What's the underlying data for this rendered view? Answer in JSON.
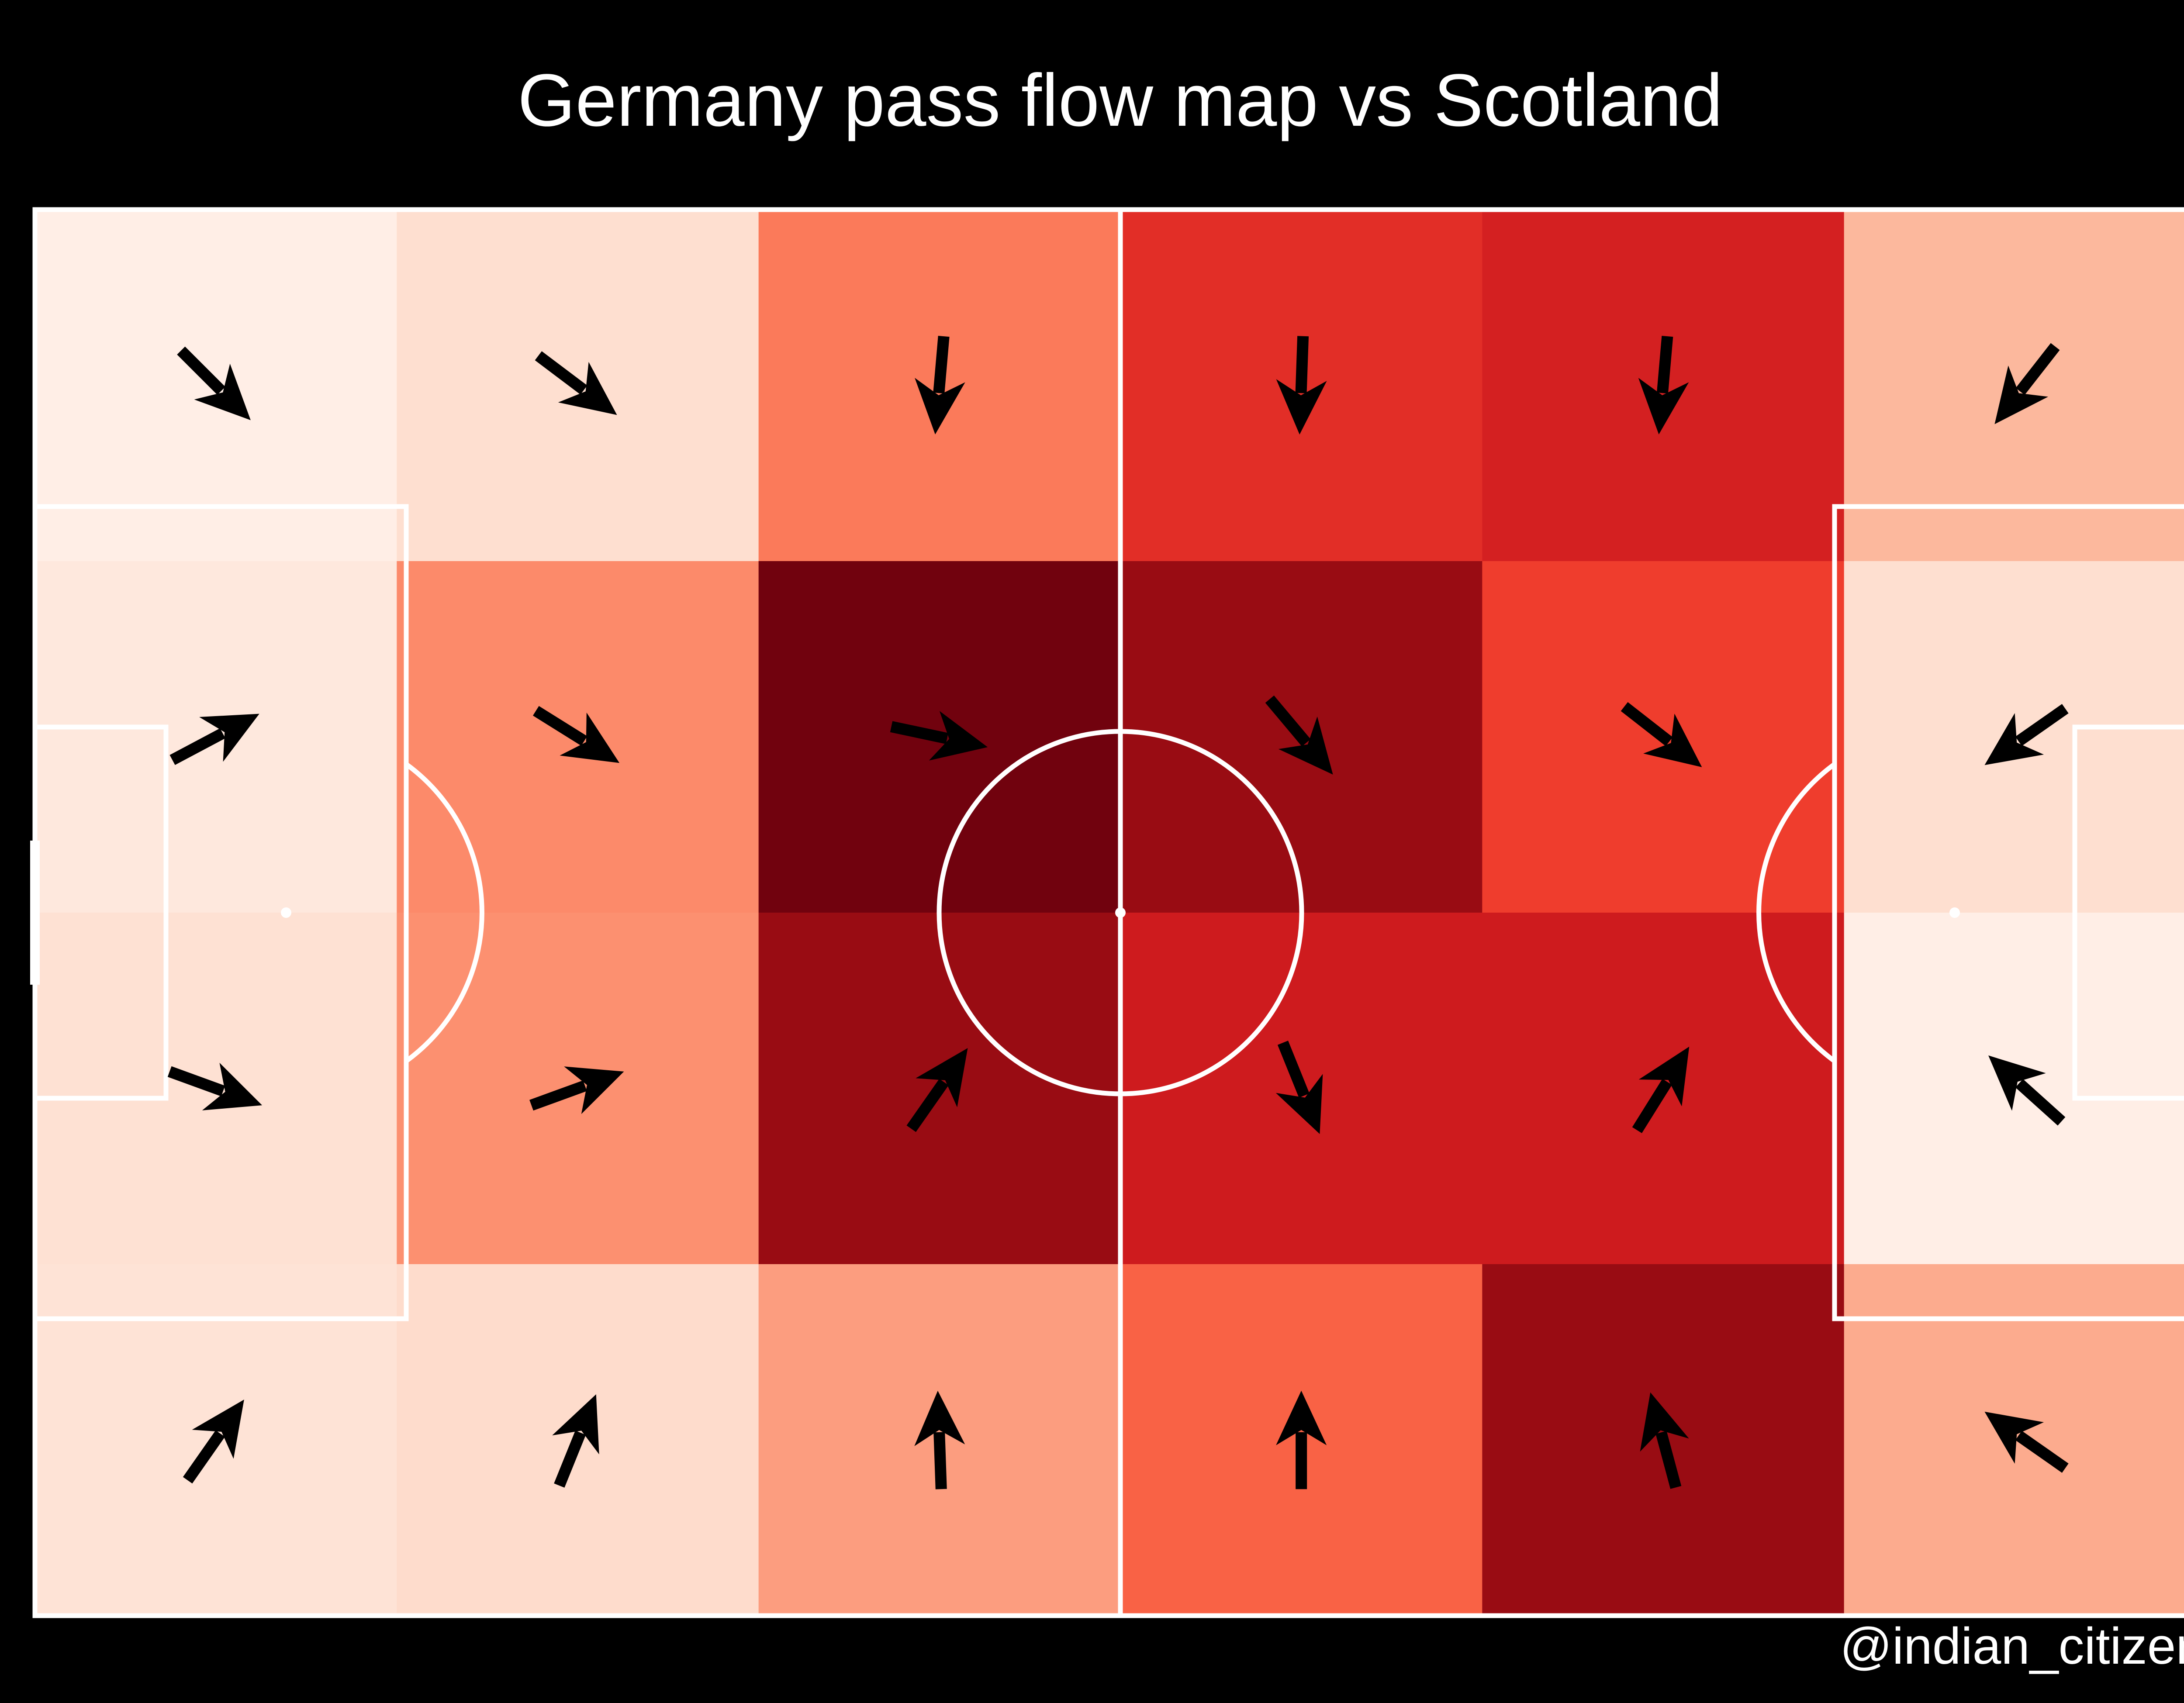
{
  "title": "Germany pass flow map vs Scotland",
  "credit": "@indian_citizen",
  "colors": {
    "background": "#000000",
    "lines": "#ffffff",
    "arrows": "#000000",
    "cmap": [
      "#fff5f0",
      "#fee0d2",
      "#fcbba1",
      "#fc9272",
      "#fb6a4a",
      "#ef3b2c",
      "#cb181d",
      "#a50f15",
      "#67000d"
    ]
  },
  "chart_data": {
    "type": "heatmap",
    "description_cols": 6,
    "rows": 4,
    "x": [
      1,
      2,
      3,
      4,
      5,
      6
    ],
    "y": [
      1,
      2,
      3,
      4
    ],
    "xlim": [
      0,
      120
    ],
    "ylim": [
      0,
      80
    ],
    "intensity": [
      [
        0.04,
        0.13,
        0.45,
        0.67,
        0.72,
        0.26
      ],
      [
        0.08,
        0.4,
        0.98,
        0.9,
        0.62,
        0.13
      ],
      [
        0.12,
        0.38,
        0.9,
        0.74,
        0.74,
        0.04
      ],
      [
        0.11,
        0.14,
        0.34,
        0.52,
        0.9,
        0.3
      ]
    ],
    "flow_angles_deg": [
      [
        -45,
        -37,
        -95,
        -92,
        -95,
        -128
      ],
      [
        28,
        -32,
        -12,
        -50,
        -38,
        -145
      ],
      [
        -20,
        20,
        55,
        -68,
        58,
        138
      ],
      [
        55,
        68,
        92,
        90,
        105,
        145
      ]
    ]
  }
}
